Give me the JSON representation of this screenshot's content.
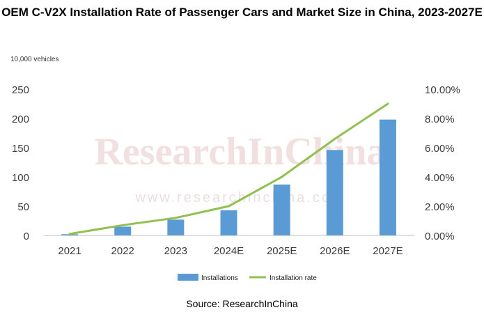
{
  "chart_data": {
    "type": "bar",
    "title": "OEM C-V2X Installation Rate of Passenger Cars and Market Size in China, 2023-2027E",
    "unit_label": "10,000 vehicles",
    "categories": [
      "2021",
      "2022",
      "2023",
      "2024E",
      "2025E",
      "2026E",
      "2027E"
    ],
    "series": [
      {
        "name": "Installations",
        "type": "bar",
        "axis": "left",
        "color": "#5b9bd5",
        "values": [
          2,
          15,
          27,
          43,
          87,
          146,
          198
        ]
      },
      {
        "name": "Installation rate",
        "type": "line",
        "axis": "right",
        "color": "#92c050",
        "values": [
          0.001,
          0.007,
          0.012,
          0.02,
          0.04,
          0.066,
          0.09
        ]
      }
    ],
    "y_left": {
      "min": 0,
      "max": 250,
      "ticks": [
        "0",
        "50",
        "100",
        "150",
        "200",
        "250"
      ]
    },
    "y_right": {
      "min": 0,
      "max": 0.1,
      "ticks": [
        "0.00%",
        "2.00%",
        "4.00%",
        "6.00%",
        "8.00%",
        "10.00%"
      ]
    },
    "legend": [
      "Installations",
      "Installation rate"
    ],
    "legend_position": "bottom",
    "grid": false
  },
  "watermark": {
    "main": "ResearchInChina",
    "url": "www.researchinchina.com"
  },
  "source": "Source: ResearchInChina"
}
